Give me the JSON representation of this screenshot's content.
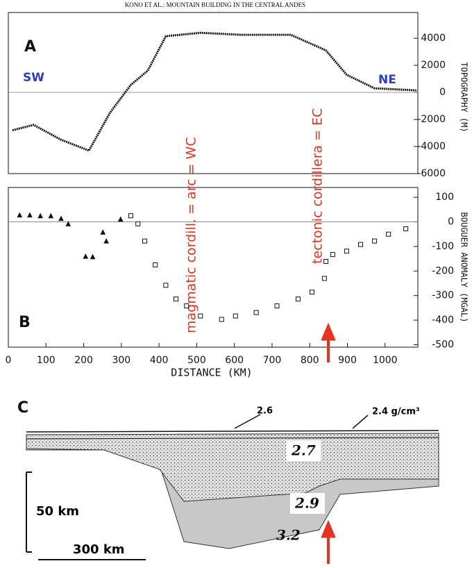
{
  "header": "KONO ET AL.: MOUNTAIN BUILDING IN THE CENTRAL ANDES",
  "panel_labels": [
    "A",
    "B",
    "C"
  ],
  "directions": [
    "SW",
    "NE"
  ],
  "annotations": [
    "magmatic cordill. = arc = WC",
    "tectonic cordillera = EC"
  ],
  "chart_data": [
    {
      "type": "line",
      "y_label": "TOPOGRAPHY (M)",
      "color": "#111111",
      "x": [
        11,
        67,
        140,
        214,
        270,
        325,
        370,
        418,
        510,
        620,
        750,
        843,
        898,
        972,
        1083
      ],
      "values": [
        -2800,
        -2400,
        -3500,
        -4300,
        -1500,
        550,
        1600,
        4150,
        4400,
        4250,
        4250,
        3100,
        1300,
        300,
        150
      ],
      "xlim": [
        0,
        1087
      ],
      "ylim": [
        -6000,
        5900
      ],
      "yticks": [
        4000,
        2000,
        0,
        -2000,
        -4000,
        -6000
      ],
      "zero_line": true
    },
    {
      "type": "scatter",
      "y_label": "BOUGUER ANOMALY (MGAL)",
      "x_label": "DISTANCE (KM)",
      "series": [
        {
          "color": "#111111",
          "marker": "triangle",
          "x": [
            30,
            57,
            85,
            113,
            140,
            159,
            205,
            224,
            251,
            260,
            298
          ],
          "values": [
            28,
            28,
            25,
            25,
            14,
            -8,
            -140,
            -142,
            -42,
            -78,
            11
          ]
        },
        {
          "color": "#111111",
          "marker": "square",
          "x": [
            325,
            344,
            362,
            390,
            418,
            445,
            473,
            510,
            566,
            603,
            658,
            713,
            769,
            806,
            839,
            843,
            861,
            898,
            935,
            972,
            1009,
            1055
          ],
          "values": [
            25,
            -8,
            -78,
            -175,
            -258,
            -314,
            -342,
            -383,
            -397,
            -383,
            -369,
            -342,
            -314,
            -286,
            -230,
            -161,
            -133,
            -119,
            -92,
            -78,
            -50,
            -28
          ]
        }
      ],
      "xlim": [
        0,
        1087
      ],
      "ylim": [
        -510,
        140
      ],
      "xticks": [
        0,
        100,
        200,
        300,
        400,
        500,
        600,
        700,
        800,
        900,
        1000
      ],
      "yticks": [
        100,
        0,
        -100,
        -200,
        -300,
        -400,
        -500
      ],
      "zero_line": true
    }
  ],
  "section": {
    "densities": [
      "2.6",
      "2.4 g/cm³",
      "2.7",
      "2.9",
      "3.2"
    ],
    "depth_scale": "50 km",
    "distance_scale": "300 km"
  }
}
